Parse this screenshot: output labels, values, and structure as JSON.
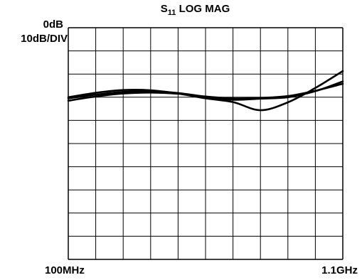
{
  "chart_data": {
    "type": "line",
    "title": {
      "prefix": "S",
      "sub": "11",
      "suffix": " LOG MAG"
    },
    "reference_label": "0dB",
    "scale_label": "10dB/DIV",
    "x_start_label": "100MHz",
    "x_end_label": "1.1GHz",
    "x_unit": "MHz",
    "xlim": [
      100,
      1100
    ],
    "ylim": [
      -100,
      0
    ],
    "divisions": {
      "x": 10,
      "y": 10
    },
    "grid": true,
    "series": [
      {
        "values": [
          [
            100,
            -30.0
          ],
          [
            200,
            -28.1
          ],
          [
            300,
            -26.9
          ],
          [
            400,
            -27.0
          ],
          [
            500,
            -28.4
          ],
          [
            600,
            -30.5
          ],
          [
            700,
            -32.1
          ],
          [
            800,
            -35.6
          ],
          [
            900,
            -32.2
          ],
          [
            1000,
            -26.0
          ],
          [
            1100,
            -18.7
          ]
        ]
      },
      {
        "values": [
          [
            100,
            -30.5
          ],
          [
            200,
            -28.9
          ],
          [
            300,
            -27.7
          ],
          [
            400,
            -27.4
          ],
          [
            500,
            -28.2
          ],
          [
            600,
            -29.8
          ],
          [
            700,
            -31.1
          ],
          [
            800,
            -30.6
          ],
          [
            900,
            -30.0
          ],
          [
            1000,
            -27.4
          ],
          [
            1100,
            -23.2
          ]
        ]
      },
      {
        "values": [
          [
            100,
            -31.5
          ],
          [
            200,
            -29.7
          ],
          [
            300,
            -28.4
          ],
          [
            400,
            -28.0
          ],
          [
            500,
            -28.5
          ],
          [
            600,
            -29.7
          ],
          [
            700,
            -30.5
          ],
          [
            800,
            -30.3
          ],
          [
            900,
            -29.5
          ],
          [
            1000,
            -27.2
          ],
          [
            1100,
            -24.2
          ]
        ]
      }
    ]
  },
  "colors": {
    "trace": "#000000",
    "grid": "#000000",
    "background": "#ffffff"
  }
}
